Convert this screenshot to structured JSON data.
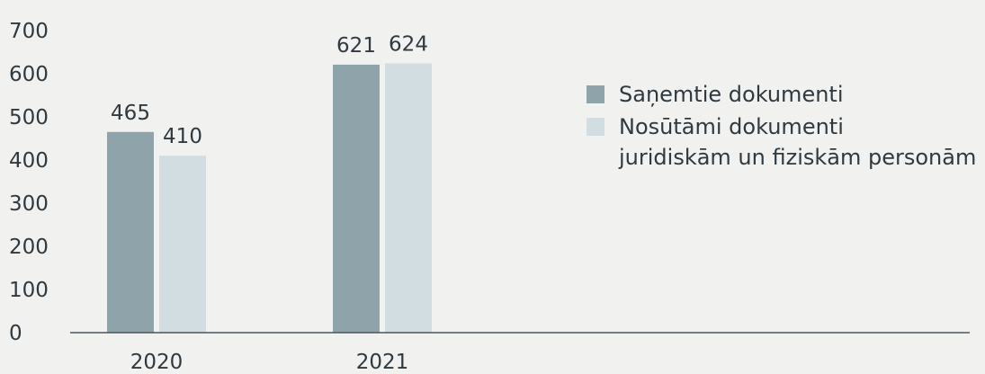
{
  "chart_data": {
    "type": "bar",
    "categories": [
      "2020",
      "2021"
    ],
    "series": [
      {
        "name": "Saņemtie dokumenti",
        "values": [
          465,
          621
        ],
        "color": "#8fa4aa"
      },
      {
        "name": "Nosūtāmi dokumenti\njuridiskām un fiziskām personām",
        "values": [
          410,
          624
        ],
        "color": "#d2dde2"
      }
    ],
    "title": "",
    "xlabel": "",
    "ylabel": "",
    "ylim": [
      0,
      700
    ],
    "yticks": [
      0,
      100,
      200,
      300,
      400,
      500,
      600,
      700
    ],
    "grid": false,
    "legend_position": "right"
  }
}
